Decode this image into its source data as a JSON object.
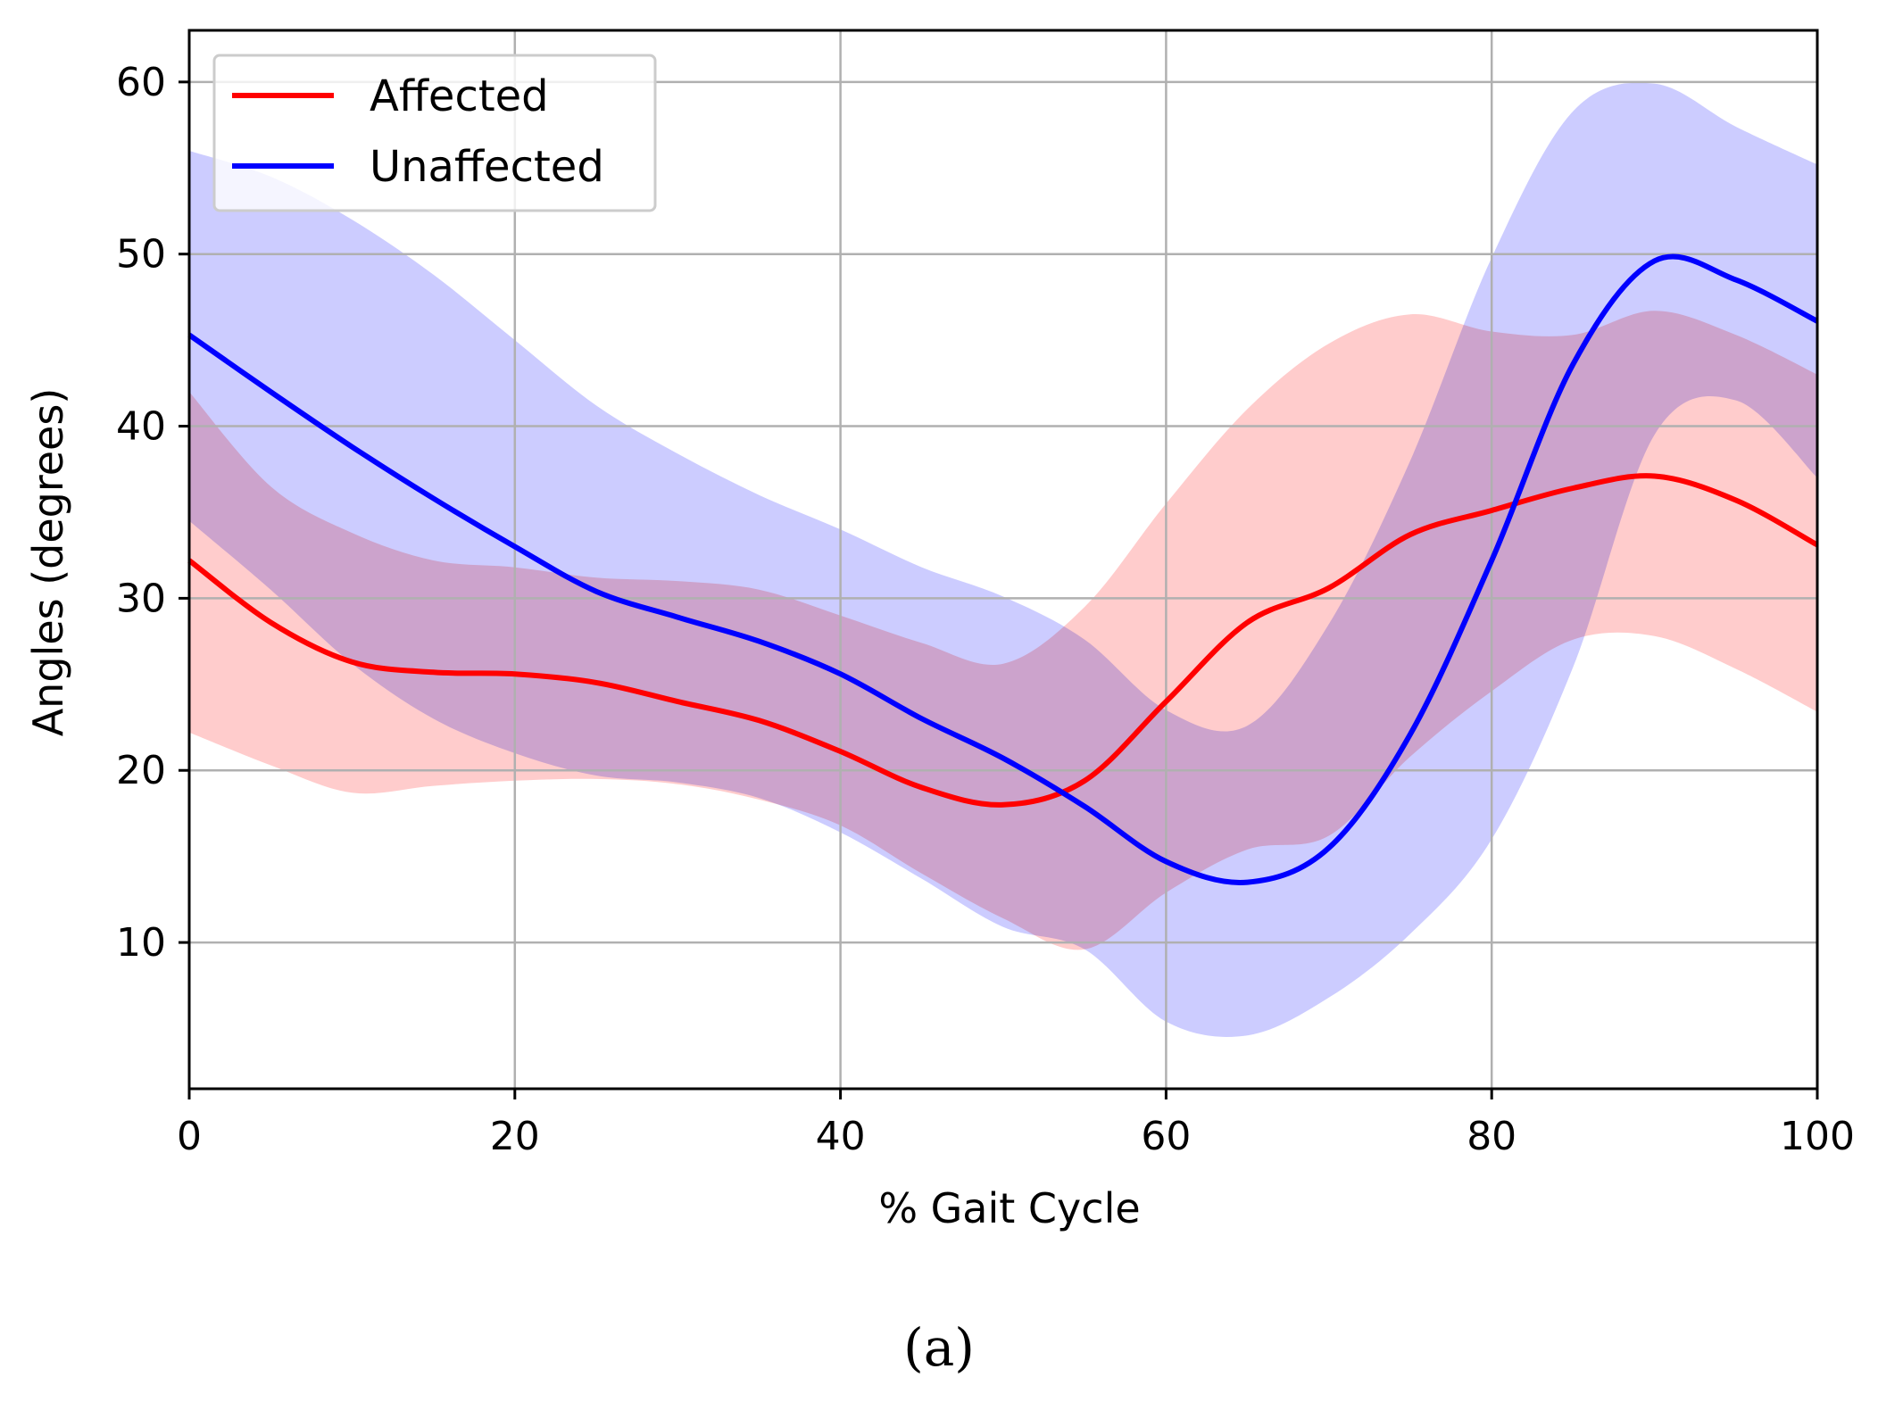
{
  "chart_data": {
    "type": "line",
    "xlabel": "% Gait Cycle",
    "ylabel": "Angles (degrees)",
    "xlim": [
      0,
      100
    ],
    "ylim": [
      1.5,
      63
    ],
    "xticks": [
      0,
      20,
      40,
      60,
      80,
      100
    ],
    "yticks": [
      10,
      20,
      30,
      40,
      50,
      60
    ],
    "grid": true,
    "legend_position": "top-left",
    "caption": "(a)",
    "x": [
      0,
      5,
      10,
      15,
      20,
      25,
      30,
      35,
      40,
      45,
      50,
      55,
      60,
      65,
      70,
      75,
      80,
      85,
      90,
      95,
      100
    ],
    "series": [
      {
        "name": "Affected",
        "color": "#ff0000",
        "band_color": "#ffcccc",
        "mean": [
          32.2,
          28.6,
          26.3,
          25.7,
          25.6,
          25.1,
          24.0,
          22.9,
          21.1,
          19.0,
          18.0,
          19.4,
          24.0,
          28.6,
          30.6,
          33.7,
          35.1,
          36.4,
          37.1,
          35.7,
          33.1
        ],
        "upper": [
          42.0,
          36.5,
          33.8,
          32.2,
          31.8,
          31.2,
          31.0,
          30.5,
          29.0,
          27.4,
          26.2,
          29.5,
          35.5,
          41.0,
          44.8,
          46.5,
          45.5,
          45.3,
          46.7,
          45.3,
          43.0
        ],
        "lower": [
          22.2,
          20.3,
          18.7,
          19.1,
          19.4,
          19.5,
          19.2,
          18.3,
          16.8,
          14.0,
          11.4,
          9.6,
          12.9,
          15.4,
          16.2,
          20.8,
          24.6,
          27.6,
          27.8,
          25.9,
          23.4
        ]
      },
      {
        "name": "Unaffected",
        "color": "#0000ff",
        "band_color": "#ccccff",
        "mean": [
          45.3,
          42.0,
          38.8,
          35.8,
          33.0,
          30.4,
          28.9,
          27.5,
          25.6,
          23.0,
          20.7,
          17.9,
          14.7,
          13.5,
          15.5,
          22.1,
          32.2,
          43.6,
          49.6,
          48.5,
          46.1
        ],
        "upper": [
          56.0,
          54.5,
          52.0,
          48.8,
          45.0,
          41.2,
          38.4,
          36.0,
          34.0,
          31.8,
          30.1,
          27.6,
          23.5,
          22.6,
          28.5,
          38.0,
          49.8,
          58.3,
          59.9,
          57.4,
          55.2
        ],
        "lower": [
          34.5,
          30.5,
          26.2,
          23.0,
          21.0,
          19.7,
          19.3,
          18.4,
          16.4,
          13.7,
          10.9,
          9.6,
          5.4,
          4.6,
          6.8,
          10.5,
          16.0,
          26.0,
          39.5,
          41.5,
          37.0
        ]
      }
    ]
  }
}
